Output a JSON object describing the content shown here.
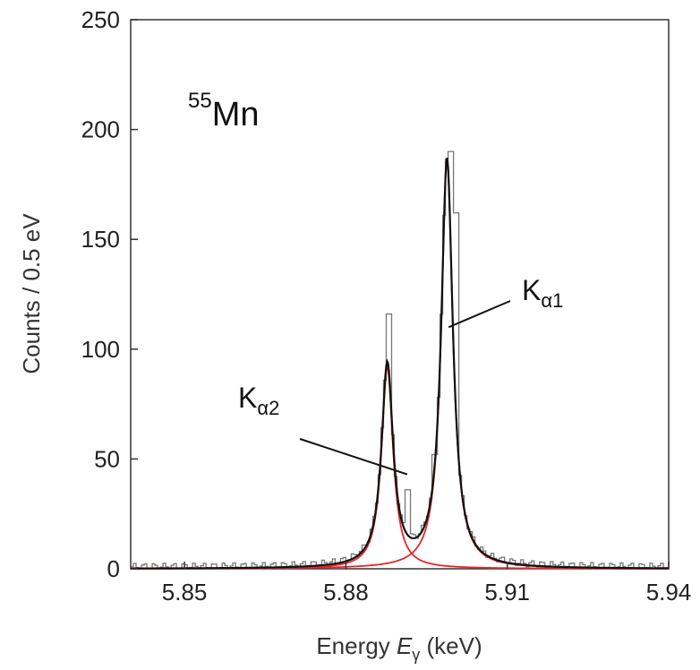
{
  "chart_data": {
    "type": "line",
    "title": "",
    "xlabel": {
      "prefix": "Energy ",
      "var": "E",
      "sub": "γ",
      "suffix": " (keV)"
    },
    "ylabel": "Counts / 0.5 eV",
    "xlim": [
      5.84,
      5.94
    ],
    "ylim": [
      0,
      250
    ],
    "x_ticks": [
      5.85,
      5.88,
      5.91,
      5.94
    ],
    "x_tick_labels": [
      "5.85",
      "5.88",
      "5.91",
      "5.94"
    ],
    "y_ticks": [
      0,
      50,
      100,
      150,
      200,
      250
    ],
    "y_tick_labels": [
      "0",
      "50",
      "100",
      "150",
      "200",
      "250"
    ],
    "grid": false,
    "colors": {
      "histogram": "#777777",
      "total_fit": "#111111",
      "components": "#e8252a"
    },
    "peaks": [
      {
        "id": "ka2",
        "center_keV": 5.8877,
        "amplitude": 92,
        "hwhm_keV": 0.0013
      },
      {
        "id": "ka1",
        "center_keV": 5.8988,
        "amplitude": 186,
        "hwhm_keV": 0.0013
      }
    ],
    "histogram_spikes": [
      {
        "x": 5.8878,
        "y": 116
      },
      {
        "x": 5.8963,
        "y": 52
      },
      {
        "x": 5.8995,
        "y": 190
      },
      {
        "x": 5.9004,
        "y": 162
      },
      {
        "x": 5.8915,
        "y": 36
      }
    ],
    "annotations": {
      "isotope_mass": "55",
      "isotope_symbol": "Mn",
      "ka1": {
        "base": "K",
        "sub": "α1",
        "target_x": 5.8991,
        "target_y": 110
      },
      "ka2": {
        "base": "K",
        "sub": "α2",
        "target_x": 5.8914,
        "target_y": 43
      }
    }
  }
}
